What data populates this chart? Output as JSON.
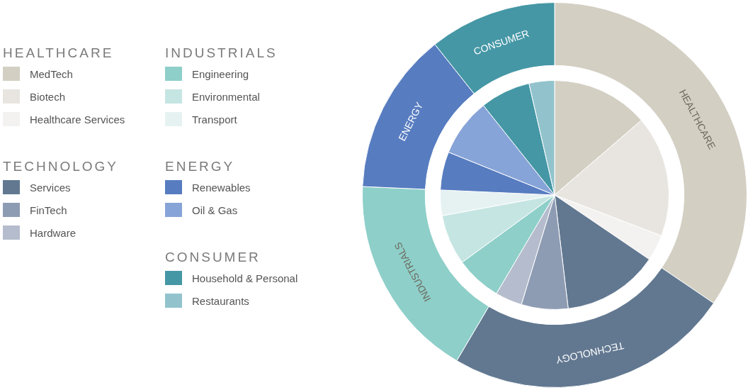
{
  "chart_data": [
    {
      "type": "donut",
      "categories": [
        "HEALTHCARE",
        "TECHNOLOGY",
        "INDUSTRIALS",
        "ENERGY",
        "CONSUMER"
      ],
      "values": [
        34.5,
        24.0,
        17.2,
        13.6,
        10.7
      ],
      "colors": [
        "#d3cfc3",
        "#627891",
        "#8ecfc9",
        "#577cc0",
        "#4597a5"
      ]
    },
    {
      "type": "pie",
      "legend": "left",
      "categories": [
        "MedTech",
        "Biotech",
        "Healthcare Services",
        "Services",
        "FinTech",
        "Hardware",
        "Engineering",
        "Environmental",
        "Transport",
        "Renewables",
        "Oil & Gas",
        "Household & Personal",
        "Restaurants"
      ],
      "values": [
        13.7,
        17.1,
        3.7,
        13.6,
        6.6,
        3.8,
        6.5,
        7.1,
        3.6,
        5.4,
        8.2,
        7.1,
        3.6
      ],
      "colors": [
        "#d3cfc3",
        "#e8e5e0",
        "#f4f2f1",
        "#627891",
        "#8e9cb3",
        "#b4bccd",
        "#8ecfc9",
        "#c5e5e2",
        "#e6f2f2",
        "#577cc0",
        "#87a4d8",
        "#4597a5",
        "#92c3cd"
      ]
    }
  ]
}
